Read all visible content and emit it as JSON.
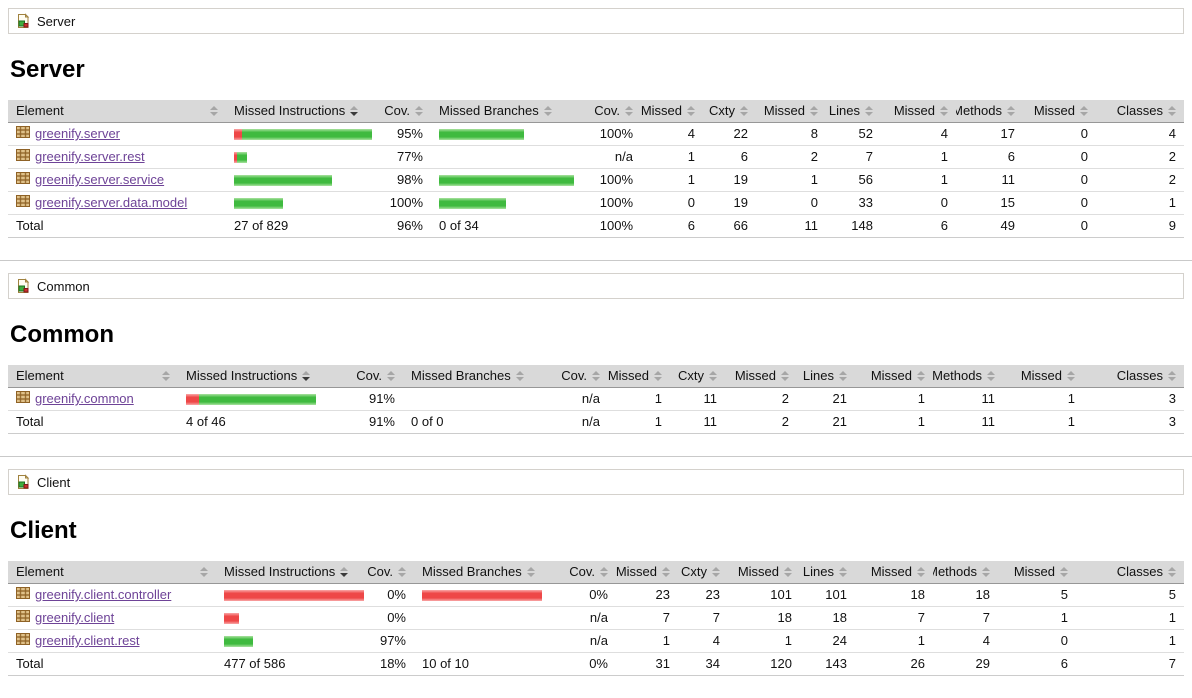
{
  "colors": {
    "covered": "#3fba3f",
    "missed": "#ee4747",
    "link": "#6e4397",
    "header_bg": "#d9d9d9"
  },
  "icons": {
    "breadcrumb": "report-icon",
    "package": "package-icon",
    "sort": "sort-toggle-icon"
  },
  "report": {
    "columns": [
      {
        "label": "Element",
        "sorted": false
      },
      {
        "label": "Missed Instructions",
        "sorted": true
      },
      {
        "label": "Cov.",
        "sorted": false
      },
      {
        "label": "Missed Branches",
        "sorted": false
      },
      {
        "label": "Cov.",
        "sorted": false
      },
      {
        "label": "Missed",
        "sorted": false
      },
      {
        "label": "Cxty",
        "sorted": false
      },
      {
        "label": "Missed",
        "sorted": false
      },
      {
        "label": "Lines",
        "sorted": false
      },
      {
        "label": "Missed",
        "sorted": false
      },
      {
        "label": "Methods",
        "sorted": false
      },
      {
        "label": "Missed",
        "sorted": false
      },
      {
        "label": "Classes",
        "sorted": false
      }
    ],
    "sections": [
      {
        "breadcrumb": "Server",
        "title": "Server",
        "rows": [
          {
            "element": "greenify.server",
            "instr_bar": {
              "missed": 8,
              "covered": 130
            },
            "instr_cov": "95%",
            "branch_bar": {
              "missed": 0,
              "covered": 85
            },
            "branch_cov": "100%",
            "cells": [
              "4",
              "22",
              "8",
              "52",
              "4",
              "17",
              "0",
              "4"
            ]
          },
          {
            "element": "greenify.server.rest",
            "instr_bar": {
              "missed": 3,
              "covered": 10
            },
            "instr_cov": "77%",
            "branch_bar": {
              "missed": 0,
              "covered": 0
            },
            "branch_cov": "n/a",
            "cells": [
              "1",
              "6",
              "2",
              "7",
              "1",
              "6",
              "0",
              "2"
            ]
          },
          {
            "element": "greenify.server.service",
            "instr_bar": {
              "missed": 0,
              "covered": 98
            },
            "instr_cov": "98%",
            "branch_bar": {
              "missed": 0,
              "covered": 135
            },
            "branch_cov": "100%",
            "cells": [
              "1",
              "19",
              "1",
              "56",
              "1",
              "11",
              "0",
              "2"
            ]
          },
          {
            "element": "greenify.server.data.model",
            "instr_bar": {
              "missed": 0,
              "covered": 49
            },
            "instr_cov": "100%",
            "branch_bar": {
              "missed": 0,
              "covered": 67
            },
            "branch_cov": "100%",
            "cells": [
              "0",
              "19",
              "0",
              "33",
              "0",
              "15",
              "0",
              "1"
            ]
          }
        ],
        "total": {
          "label": "Total",
          "instr": "27 of 829",
          "instr_cov": "96%",
          "branches": "0 of 34",
          "branch_cov": "100%",
          "cells": [
            "6",
            "66",
            "11",
            "148",
            "6",
            "49",
            "0",
            "9"
          ]
        }
      },
      {
        "breadcrumb": "Common",
        "title": "Common",
        "rows": [
          {
            "element": "greenify.common",
            "instr_bar": {
              "missed": 13,
              "covered": 117
            },
            "instr_cov": "91%",
            "branch_bar": {
              "missed": 0,
              "covered": 0
            },
            "branch_cov": "n/a",
            "cells": [
              "1",
              "11",
              "2",
              "21",
              "1",
              "11",
              "1",
              "3"
            ]
          }
        ],
        "total": {
          "label": "Total",
          "instr": "4 of 46",
          "instr_cov": "91%",
          "branches": "0 of 0",
          "branch_cov": "n/a",
          "cells": [
            "1",
            "11",
            "2",
            "21",
            "1",
            "11",
            "1",
            "3"
          ]
        }
      },
      {
        "breadcrumb": "Client",
        "title": "Client",
        "rows": [
          {
            "element": "greenify.client.controller",
            "instr_bar": {
              "missed": 140,
              "covered": 0
            },
            "instr_cov": "0%",
            "branch_bar": {
              "missed": 120,
              "covered": 0
            },
            "branch_cov": "0%",
            "cells": [
              "23",
              "23",
              "101",
              "101",
              "18",
              "18",
              "5",
              "5"
            ]
          },
          {
            "element": "greenify.client",
            "instr_bar": {
              "missed": 15,
              "covered": 0
            },
            "instr_cov": "0%",
            "branch_bar": {
              "missed": 0,
              "covered": 0
            },
            "branch_cov": "n/a",
            "cells": [
              "7",
              "7",
              "18",
              "18",
              "7",
              "7",
              "1",
              "1"
            ]
          },
          {
            "element": "greenify.client.rest",
            "instr_bar": {
              "missed": 0,
              "covered": 29
            },
            "instr_cov": "97%",
            "branch_bar": {
              "missed": 0,
              "covered": 0
            },
            "branch_cov": "n/a",
            "cells": [
              "1",
              "4",
              "1",
              "24",
              "1",
              "4",
              "0",
              "1"
            ]
          }
        ],
        "total": {
          "label": "Total",
          "instr": "477 of 586",
          "instr_cov": "18%",
          "branches": "10 of 10",
          "branch_cov": "0%",
          "cells": [
            "31",
            "34",
            "120",
            "143",
            "26",
            "29",
            "6",
            "7"
          ]
        }
      }
    ]
  }
}
